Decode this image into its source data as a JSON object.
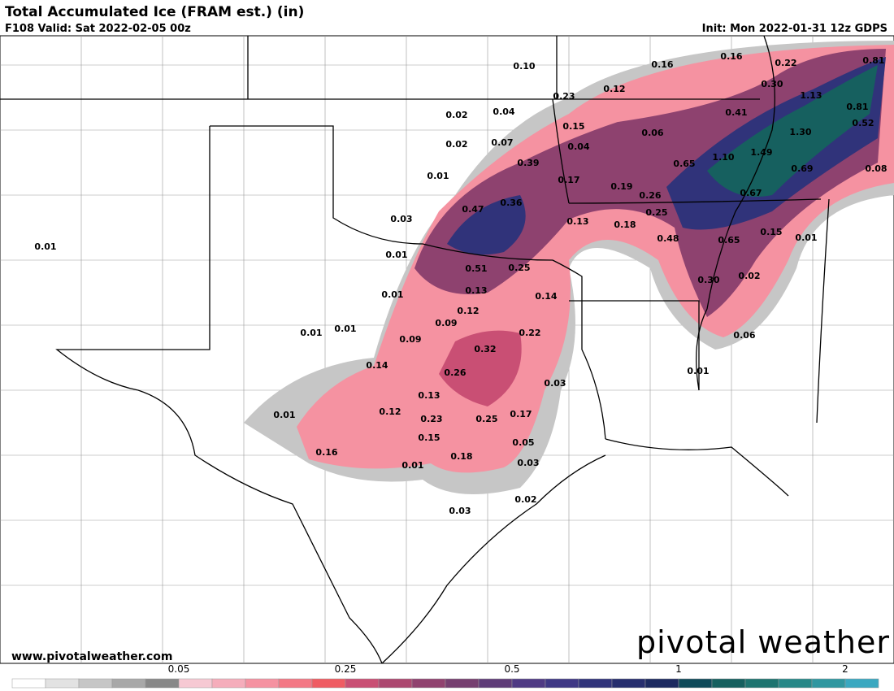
{
  "header": {
    "title": "Total Accumulated Ice (FRAM est.) (in)",
    "valid": "F108 Valid: Sat 2022-02-05 00z",
    "init": "Init: Mon 2022-01-31 12z GDPS"
  },
  "map": {
    "labels": [
      "0.10",
      "0.16",
      "0.16",
      "0.22",
      "0.81",
      "0.12",
      "0.30",
      "0.23",
      "1.13",
      "0.02",
      "0.04",
      "0.41",
      "0.81",
      "0.15",
      "0.06",
      "1.30",
      "0.52",
      "0.02",
      "0.07",
      "0.04",
      "1.10",
      "1.49",
      "0.39",
      "0.65",
      "0.69",
      "0.08",
      "0.01",
      "0.17",
      "0.19",
      "0.67",
      "0.26",
      "0.47",
      "0.36",
      "0.25",
      "0.03",
      "0.13",
      "0.18",
      "0.15",
      "0.01",
      "0.48",
      "0.65",
      "0.01",
      "0.01",
      "0.51",
      "0.25",
      "0.30",
      "0.02",
      "0.13",
      "0.01",
      "0.14",
      "0.12",
      "0.09",
      "0.01",
      "0.01",
      "0.22",
      "0.06",
      "0.09",
      "0.32",
      "0.14",
      "0.01",
      "0.26",
      "0.03",
      "0.13",
      "0.12",
      "0.23",
      "0.25",
      "0.17",
      "0.01",
      "0.15",
      "0.05",
      "0.16",
      "0.18",
      "0.01",
      "0.03",
      "0.02",
      "0.03"
    ]
  },
  "footer": {
    "website": "www.pivotalweather.com",
    "logo": "pivotal weather"
  },
  "colorbar": {
    "ticks": [
      "0.05",
      "0.25",
      "0.5",
      "1",
      "2"
    ],
    "colors": [
      "#ffffff",
      "#e2e2e2",
      "#c6c6c6",
      "#a8a8a8",
      "#888888",
      "#f6c9d3",
      "#f5adbb",
      "#f592a1",
      "#f37885",
      "#ef5c63",
      "#c94f74",
      "#ac4870",
      "#90426f",
      "#763f70",
      "#5f3c78",
      "#4f3a84",
      "#3f3885",
      "#30337a",
      "#262e6e",
      "#1c2a60",
      "#0f4a5a",
      "#16605f",
      "#1e7470",
      "#278888",
      "#3097a0",
      "#3aa8c0"
    ]
  }
}
